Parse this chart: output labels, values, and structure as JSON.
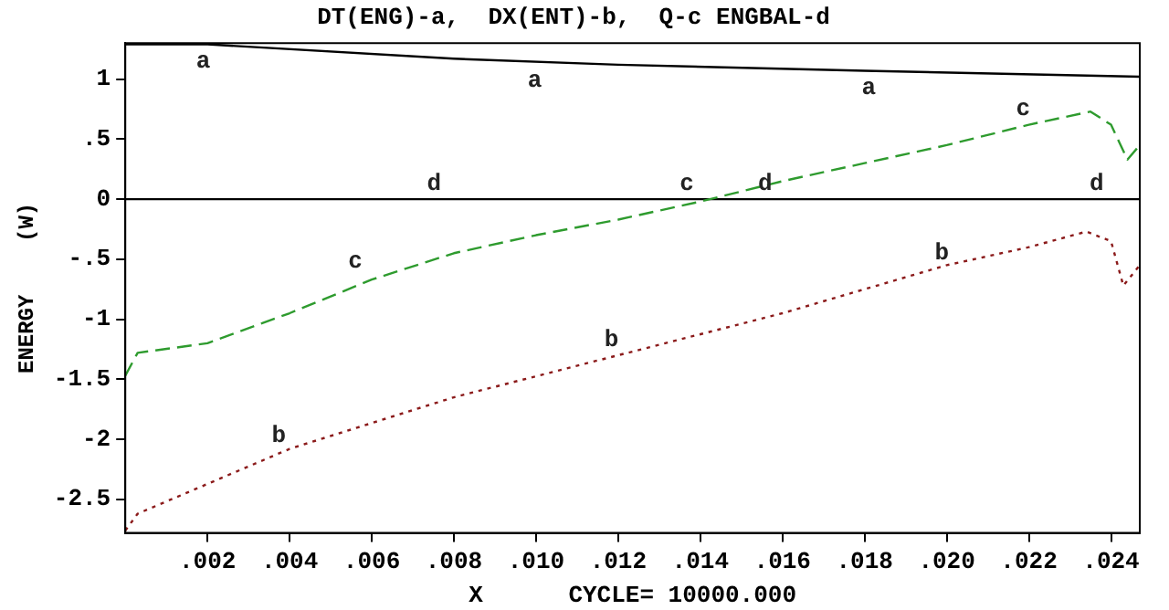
{
  "chart_data": {
    "type": "line",
    "title": "DT(ENG)-a,  DX(ENT)-b,  Q-c ENGBAL-d",
    "xlabel": "X      CYCLE= 10000.000",
    "ylabel": "ENERGY    (W)",
    "xlim": [
      0,
      0.0247
    ],
    "ylim": [
      -2.78,
      1.3
    ],
    "xticks": [
      {
        "value": 0.002,
        "label": ".002"
      },
      {
        "value": 0.004,
        "label": ".004"
      },
      {
        "value": 0.006,
        "label": ".006"
      },
      {
        "value": 0.008,
        "label": ".008"
      },
      {
        "value": 0.01,
        "label": ".010"
      },
      {
        "value": 0.012,
        "label": ".012"
      },
      {
        "value": 0.014,
        "label": ".014"
      },
      {
        "value": 0.016,
        "label": ".016"
      },
      {
        "value": 0.018,
        "label": ".018"
      },
      {
        "value": 0.02,
        "label": ".020"
      },
      {
        "value": 0.022,
        "label": ".022"
      },
      {
        "value": 0.024,
        "label": ".024"
      }
    ],
    "yticks": [
      {
        "value": -2.5,
        "label": "-2.5"
      },
      {
        "value": -2,
        "label": "-2"
      },
      {
        "value": -1.5,
        "label": "-1.5"
      },
      {
        "value": -1,
        "label": "-1"
      },
      {
        "value": -0.5,
        "label": "-.5"
      },
      {
        "value": 0,
        "label": "0"
      },
      {
        "value": 0.5,
        "label": ".5"
      },
      {
        "value": 1,
        "label": "1"
      }
    ],
    "grid": false,
    "legend": false,
    "marker": "none",
    "series": [
      {
        "color": "#000000",
        "line_style": "solid",
        "x": [
          0,
          0.002,
          0.008,
          0.012,
          0.018,
          0.0247
        ],
        "values": [
          1.29,
          1.29,
          1.17,
          1.12,
          1.07,
          1.02
        ]
      },
      {
        "color": "#8b1a1a",
        "line_style": "dotted",
        "x": [
          0,
          0.0003,
          0.004,
          0.008,
          0.012,
          0.016,
          0.02,
          0.022,
          0.0234,
          0.024,
          0.0243,
          0.0247
        ],
        "values": [
          -2.76,
          -2.62,
          -2.08,
          -1.65,
          -1.3,
          -0.95,
          -0.55,
          -0.4,
          -0.27,
          -0.35,
          -0.72,
          -0.55
        ]
      },
      {
        "color": "#2e9b2e",
        "line_style": "dashed",
        "x": [
          0,
          0.0003,
          0.002,
          0.004,
          0.006,
          0.008,
          0.01,
          0.012,
          0.014,
          0.016,
          0.018,
          0.02,
          0.022,
          0.0235,
          0.024,
          0.0244,
          0.0247
        ],
        "values": [
          -1.47,
          -1.28,
          -1.2,
          -0.95,
          -0.67,
          -0.45,
          -0.3,
          -0.17,
          -0.02,
          0.15,
          0.3,
          0.45,
          0.62,
          0.73,
          0.62,
          0.33,
          0.45
        ]
      },
      {
        "color": "#000000",
        "line_style": "solid",
        "x": [
          0,
          0.0247
        ],
        "values": [
          0,
          0
        ]
      }
    ],
    "annotations": [
      {
        "text": "a",
        "x": 0.0019,
        "y": 1.29
      },
      {
        "text": "a",
        "x": 0.00997,
        "y": 1.13
      },
      {
        "text": "a",
        "x": 0.0181,
        "y": 1.07
      },
      {
        "text": "b",
        "x": 0.00374,
        "y": -2.1
      },
      {
        "text": "b",
        "x": 0.01184,
        "y": -1.3
      },
      {
        "text": "b",
        "x": 0.01988,
        "y": -0.58
      },
      {
        "text": "c",
        "x": 0.0056,
        "y": -0.65
      },
      {
        "text": "c",
        "x": 0.01367,
        "y": 0
      },
      {
        "text": "c",
        "x": 0.02186,
        "y": 0.62
      },
      {
        "text": "d",
        "x": 0.00752,
        "y": 0
      },
      {
        "text": "d",
        "x": 0.01558,
        "y": 0
      },
      {
        "text": "d",
        "x": 0.02365,
        "y": 0
      }
    ]
  }
}
